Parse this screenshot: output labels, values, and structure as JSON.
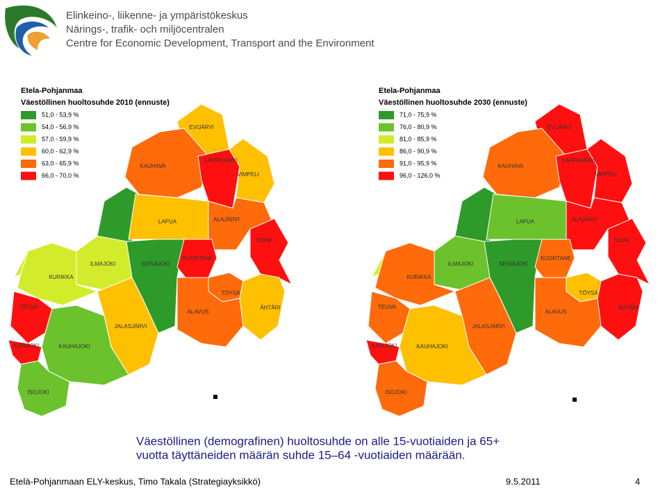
{
  "header": {
    "lines": [
      "Elinkeino-, liikenne- ja ympäristökeskus",
      "Närings-, trafik- och miljöcentralen",
      "Centre for Economic Development, Transport and the Environment"
    ]
  },
  "maps": [
    {
      "region": "Etela-Pohjanmaa",
      "title": "Väestöllinen huoltosuhde 2010 (ennuste)",
      "legend": [
        {
          "label": "51,0 - 53,9 %",
          "color": "#2e9a2a"
        },
        {
          "label": "54,0 - 56,9 %",
          "color": "#6cc22c"
        },
        {
          "label": "57,0 - 59,9 %",
          "color": "#d2ec2c"
        },
        {
          "label": "60,0 - 62,9 %",
          "color": "#ffc000"
        },
        {
          "label": "63,0 - 65,9 %",
          "color": "#ff6a0a"
        },
        {
          "label": "66,0 - 70,0 %",
          "color": "#ff1010"
        }
      ],
      "municipalities": [
        {
          "name": "EVIJÄRVI",
          "color": "#ffc000"
        },
        {
          "name": "KAUHAVA",
          "color": "#ff6a0a"
        },
        {
          "name": "LAPPAJÄRVI",
          "color": "#ff1010"
        },
        {
          "name": "VIMPELI",
          "color": "#ffc000"
        },
        {
          "name": "LAPUA",
          "color": "#ffc000"
        },
        {
          "name": "ALAJÄRVI",
          "color": "#ff6a0a"
        },
        {
          "name": "SOINI",
          "color": "#ff1010"
        },
        {
          "name": "ILMAJOKI",
          "color": "#d2ec2c"
        },
        {
          "name": "SEINÄJOKI",
          "color": "#2e9a2a"
        },
        {
          "name": "KUORTANE",
          "color": "#ff1010"
        },
        {
          "name": "KURIKKA",
          "color": "#d2ec2c"
        },
        {
          "name": "TÖYSÄ",
          "color": "#ff6a0a"
        },
        {
          "name": "ÄHTÄRI",
          "color": "#ffc000"
        },
        {
          "name": "ALAVUS",
          "color": "#ff6a0a"
        },
        {
          "name": "TEUVA",
          "color": "#ff1010"
        },
        {
          "name": "JALASJÄRVI",
          "color": "#ffc000"
        },
        {
          "name": "KARIJOKI",
          "color": "#ff1010"
        },
        {
          "name": "KAUHAJOKI",
          "color": "#6cc22c"
        },
        {
          "name": "ISOJOKI",
          "color": "#6cc22c"
        }
      ]
    },
    {
      "region": "Etela-Pohjanmaa",
      "title": "Väestöllinen huoltosuhde 2030 (ennuste)",
      "legend": [
        {
          "label": "71,0 - 75,9 %",
          "color": "#2e9a2a"
        },
        {
          "label": "76,0 - 80,9 %",
          "color": "#6cc22c"
        },
        {
          "label": "81,0 - 85,9 %",
          "color": "#d2ec2c"
        },
        {
          "label": "86,0 - 90,9 %",
          "color": "#ffc000"
        },
        {
          "label": "91,0 - 95,9 %",
          "color": "#ff6a0a"
        },
        {
          "label": "96,0 - 126,0 %",
          "color": "#ff1010"
        }
      ],
      "municipalities": [
        {
          "name": "EVIJÄRVI",
          "color": "#ff1010"
        },
        {
          "name": "KAUHAVA",
          "color": "#ff6a0a"
        },
        {
          "name": "LAPPAJÄRVI",
          "color": "#ff1010"
        },
        {
          "name": "VIMPELI",
          "color": "#ff1010"
        },
        {
          "name": "LAPUA",
          "color": "#6cc22c"
        },
        {
          "name": "ALAJÄRVI",
          "color": "#ff1010"
        },
        {
          "name": "SOINI",
          "color": "#ff1010"
        },
        {
          "name": "ILMAJOKI",
          "color": "#6cc22c"
        },
        {
          "name": "SEINÄJOKI",
          "color": "#2e9a2a"
        },
        {
          "name": "KUORTANE",
          "color": "#ff6a0a"
        },
        {
          "name": "KURIKKA",
          "color": "#ff6a0a"
        },
        {
          "name": "TÖYSÄ",
          "color": "#ffc000"
        },
        {
          "name": "ÄHTÄRI",
          "color": "#ff1010"
        },
        {
          "name": "ALAVUS",
          "color": "#ff6a0a"
        },
        {
          "name": "TEUVA",
          "color": "#ff6a0a"
        },
        {
          "name": "JALASJÄRVI",
          "color": "#ff6a0a"
        },
        {
          "name": "KARIJOKI",
          "color": "#ff1010"
        },
        {
          "name": "KAUHAJOKI",
          "color": "#ffc000"
        },
        {
          "name": "ISOJOKI",
          "color": "#ff6a0a"
        }
      ]
    }
  ],
  "caption": [
    "Väestöllinen (demografinen) huoltosuhde on alle 15-vuotiaiden ja 65+",
    "vuotta täyttäneiden määrän suhde 15–64 -vuotiaiden määrään."
  ],
  "footer": {
    "author": "Etelä-Pohjanmaan ELY-keskus, Timo Takala (Strategiayksikkö)",
    "date": "9.5.2011",
    "page": "4"
  }
}
